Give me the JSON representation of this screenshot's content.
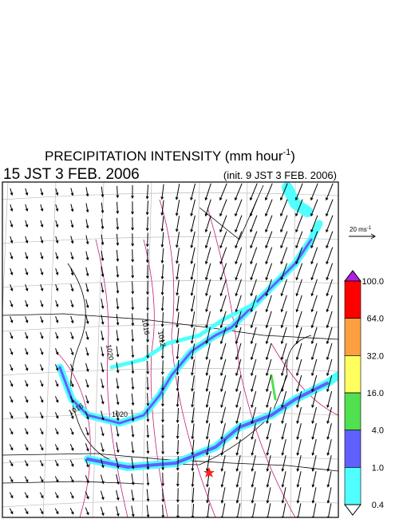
{
  "header": {
    "title_main": "PRECIPITATION INTENSITY (mm hour",
    "title_sup": "-1",
    "title_end": ")",
    "valid_time": "15 JST 3 FEB. 2006",
    "init_time": "(init. 9 JST 3 FEB. 2006)"
  },
  "wind_scale": {
    "label_main": "20 ms",
    "label_sup": "-1"
  },
  "colorbar": {
    "levels": [
      {
        "value": 100,
        "label": "100.0"
      },
      {
        "value": 64,
        "label": "64.0"
      },
      {
        "value": 32,
        "label": "32.0"
      },
      {
        "value": 16,
        "label": "16.0"
      },
      {
        "value": 4,
        "label": "4.0"
      },
      {
        "value": 1,
        "label": "1.0"
      },
      {
        "value": 0.4,
        "label": "0.4"
      }
    ],
    "colors": [
      "#ff0000",
      "#ffa040",
      "#ffff60",
      "#50e050",
      "#6060ff",
      "#50ffff"
    ],
    "over_color": "#b020e0",
    "under_color": "#ffffff"
  },
  "contours": [
    {
      "label": "1020"
    },
    {
      "label": "1016"
    },
    {
      "label": "1012"
    },
    {
      "label": "1016"
    },
    {
      "label": "1020"
    }
  ]
}
